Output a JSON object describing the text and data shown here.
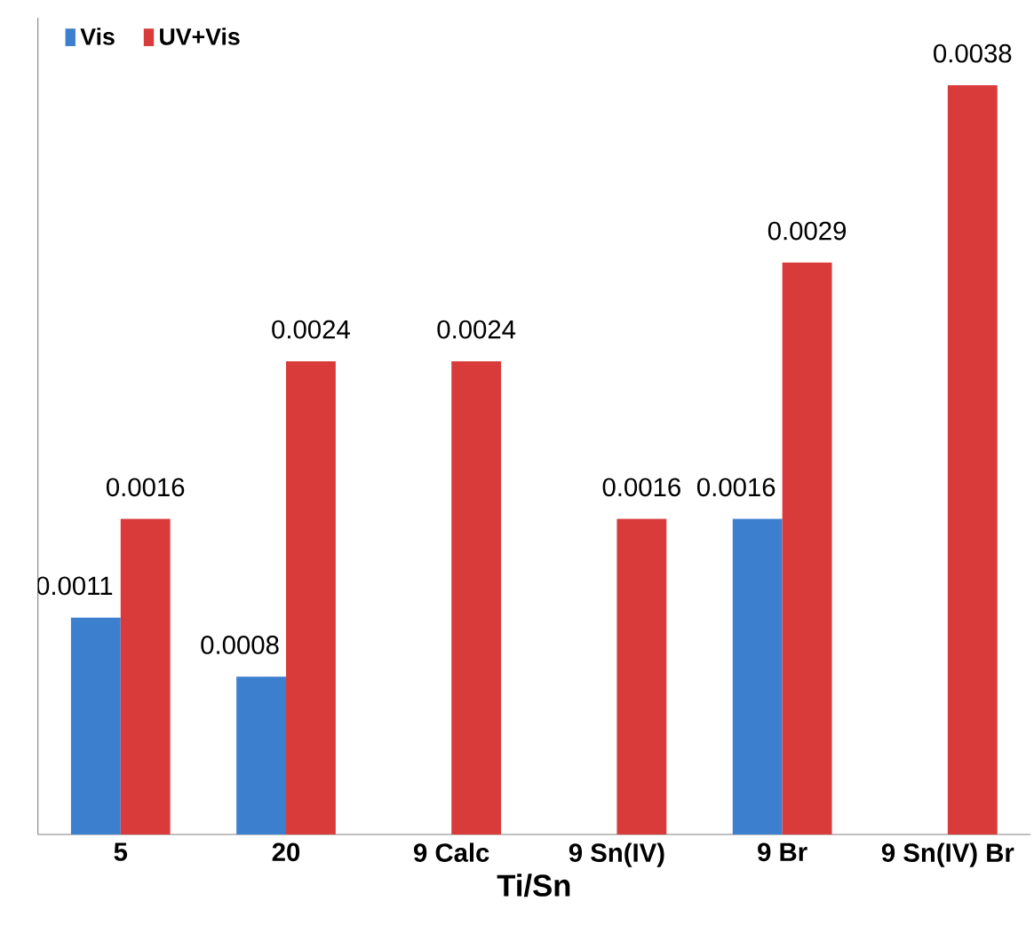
{
  "chart_data": {
    "type": "bar",
    "xlabel": "Ti/Sn",
    "categories": [
      "5",
      "20",
      "9 Calc",
      "9 Sn(IV)",
      "9 Br",
      "9 Sn(IV) Br"
    ],
    "series": [
      {
        "name": "Vis",
        "color": "#3d7fcf",
        "values": [
          0.0011,
          0.0008,
          null,
          null,
          0.0016,
          null
        ]
      },
      {
        "name": "UV+Vis",
        "color": "#d93b3b",
        "values": [
          0.0016,
          0.0024,
          0.0024,
          0.0016,
          0.0029,
          0.0038
        ]
      }
    ],
    "data_labels": true,
    "legend": "top left"
  }
}
